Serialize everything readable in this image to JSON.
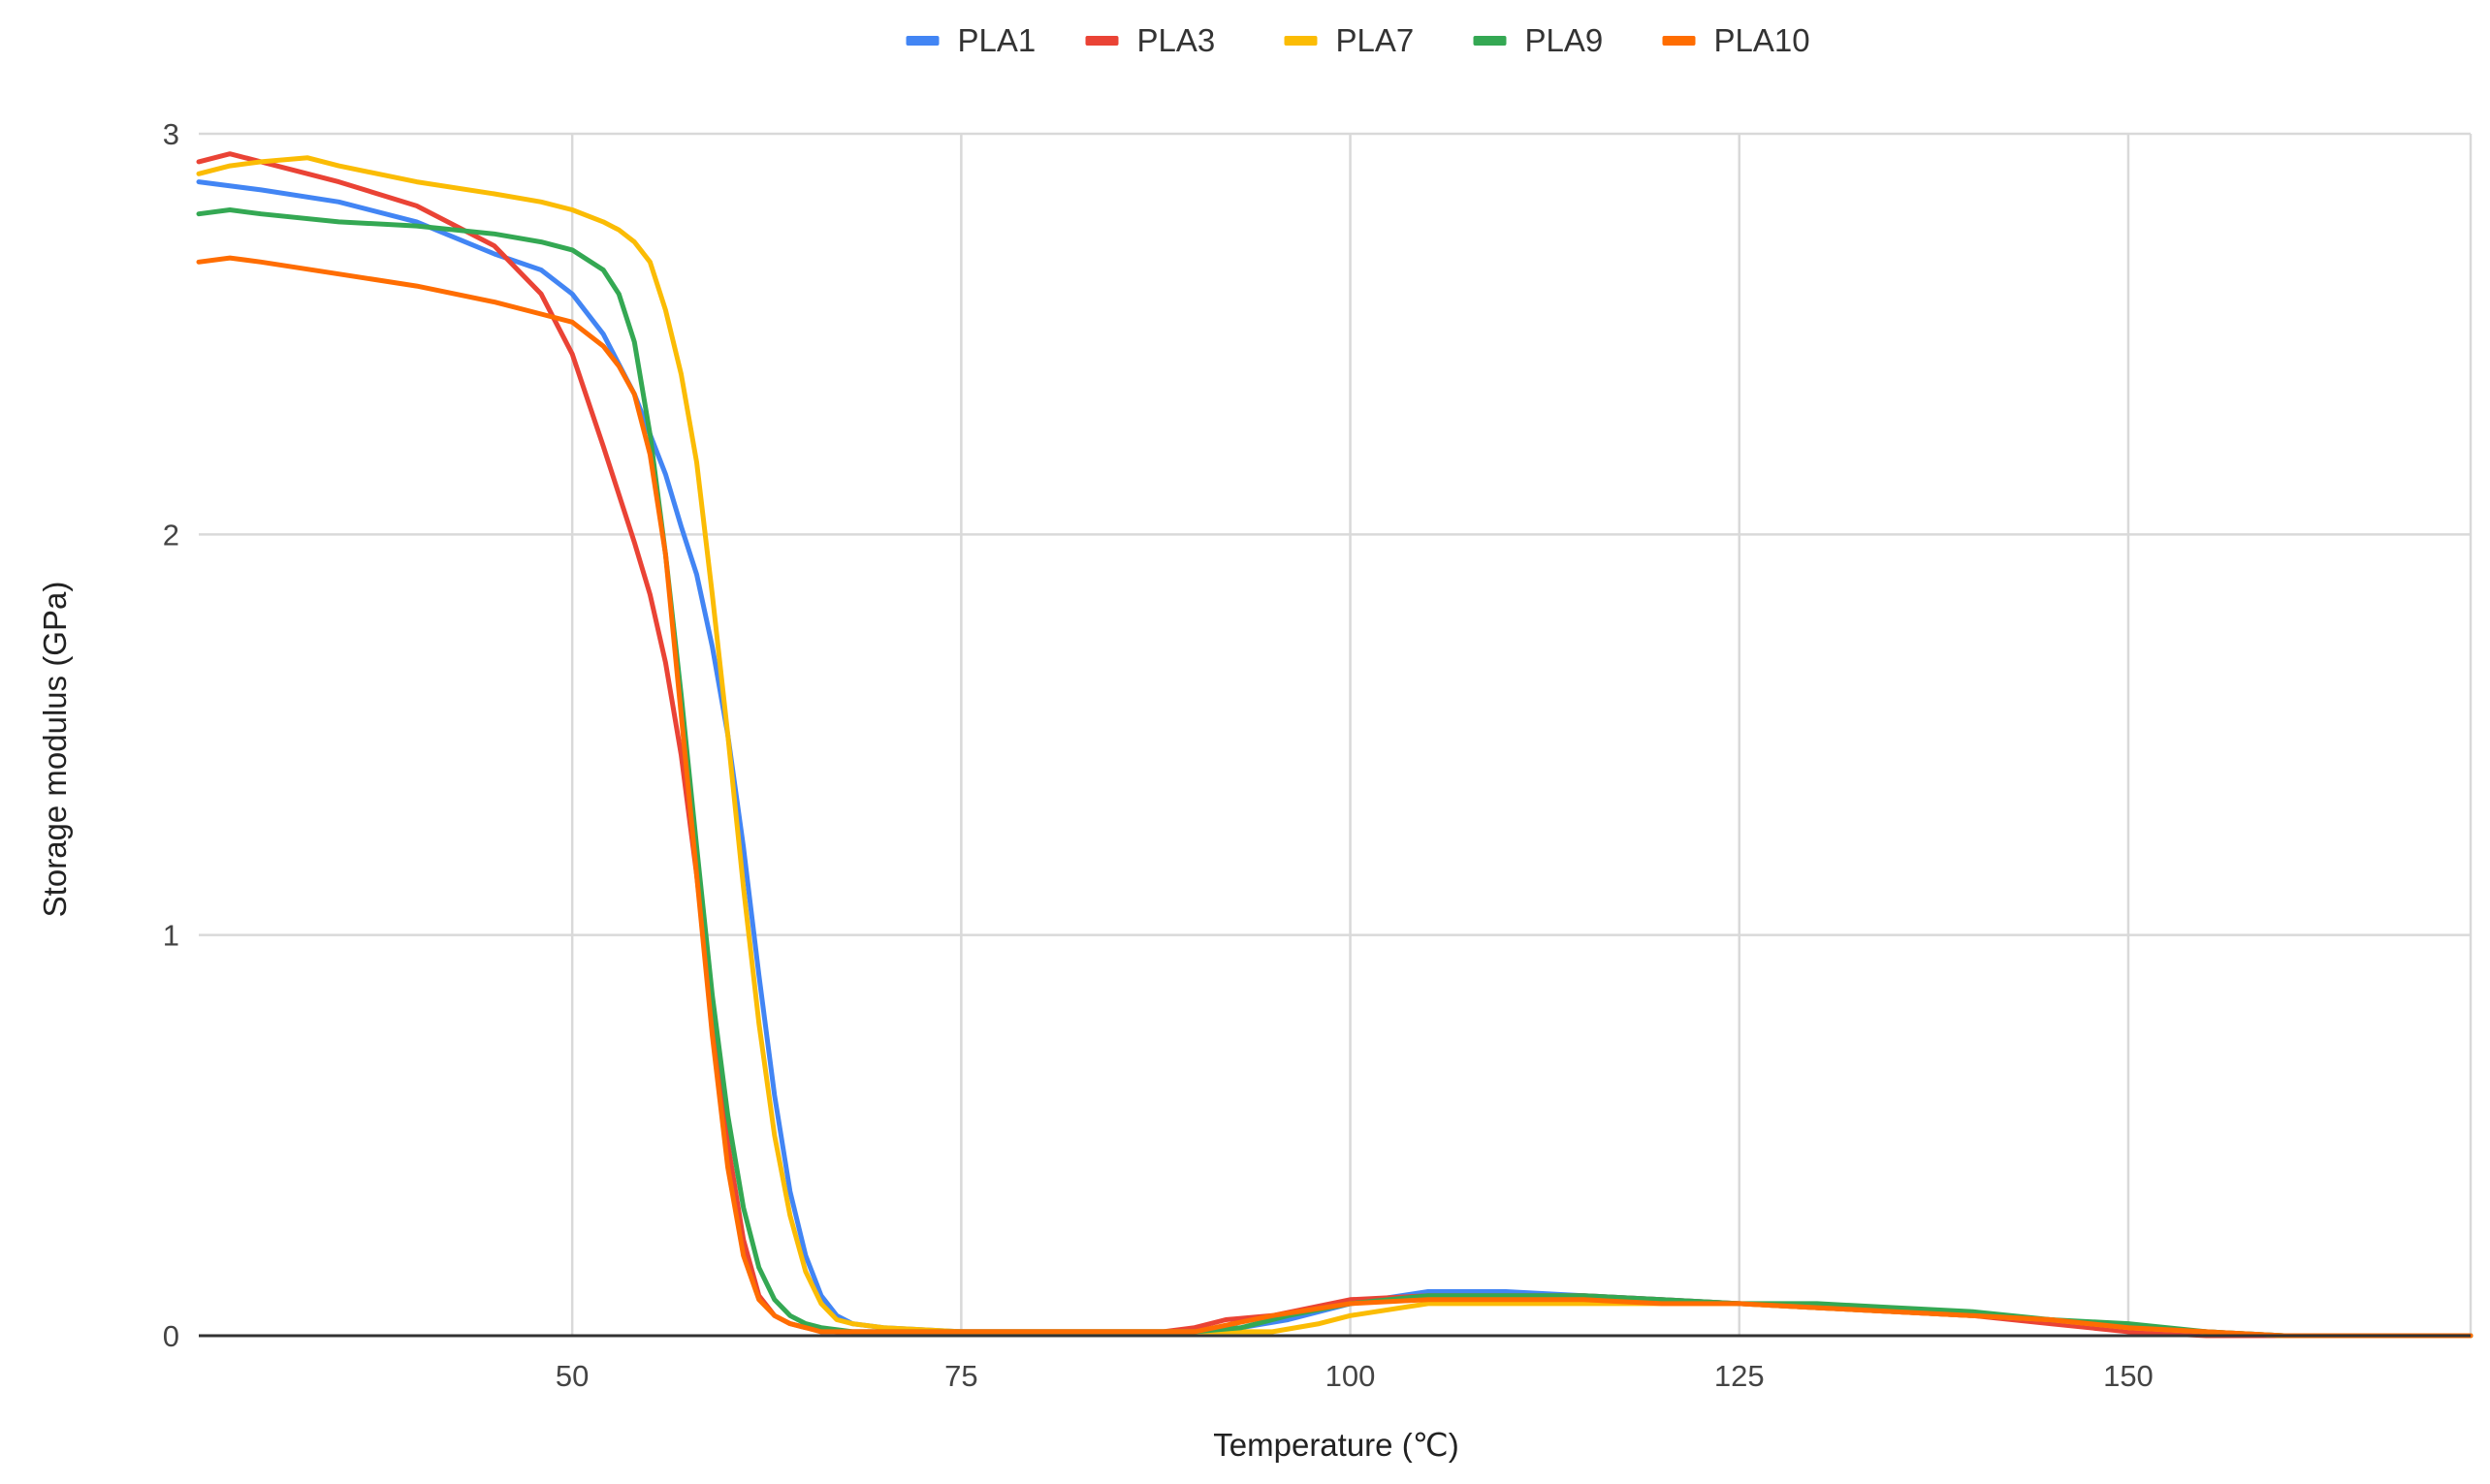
{
  "chart_data": {
    "type": "line",
    "title": "",
    "xlabel": "Temperature (℃)",
    "ylabel": "Storage modulus (GPa)",
    "xlim": [
      26,
      172
    ],
    "ylim": [
      0,
      3
    ],
    "xticks": [
      50,
      75,
      100,
      125,
      150
    ],
    "yticks": [
      0,
      1,
      2,
      3
    ],
    "grid": true,
    "legend_position": "top",
    "series": [
      {
        "name": "PLA1",
        "color": "#4285F4",
        "x": [
          26,
          30,
          35,
          40,
          45,
          48,
          50,
          52,
          54,
          56,
          57,
          58,
          59,
          60,
          61,
          62,
          63,
          64,
          65,
          66,
          67,
          68,
          70,
          75,
          80,
          85,
          90,
          93,
          96,
          100,
          105,
          110,
          115,
          120,
          125,
          130,
          135,
          140,
          145,
          150,
          155,
          160,
          165,
          172
        ],
        "y": [
          2.88,
          2.86,
          2.83,
          2.78,
          2.7,
          2.66,
          2.6,
          2.5,
          2.35,
          2.15,
          2.02,
          1.9,
          1.72,
          1.5,
          1.22,
          0.9,
          0.6,
          0.36,
          0.2,
          0.1,
          0.05,
          0.03,
          0.02,
          0.01,
          0.01,
          0.01,
          0.01,
          0.02,
          0.04,
          0.08,
          0.11,
          0.11,
          0.1,
          0.09,
          0.08,
          0.07,
          0.06,
          0.05,
          0.04,
          0.02,
          0.01,
          0.0,
          0.0,
          0.0
        ]
      },
      {
        "name": "PLA3",
        "color": "#EA4335",
        "x": [
          26,
          28,
          30,
          35,
          40,
          45,
          48,
          50,
          52,
          54,
          55,
          56,
          57,
          58,
          59,
          60,
          61,
          62,
          63,
          64,
          65,
          67,
          70,
          75,
          80,
          85,
          88,
          90,
          92,
          95,
          100,
          105,
          110,
          115,
          120,
          125,
          130,
          135,
          140,
          145,
          150,
          155,
          160,
          165,
          172
        ],
        "y": [
          2.93,
          2.95,
          2.93,
          2.88,
          2.82,
          2.72,
          2.6,
          2.45,
          2.22,
          1.98,
          1.85,
          1.68,
          1.45,
          1.15,
          0.8,
          0.48,
          0.24,
          0.1,
          0.05,
          0.03,
          0.02,
          0.01,
          0.01,
          0.01,
          0.01,
          0.01,
          0.01,
          0.02,
          0.04,
          0.05,
          0.09,
          0.1,
          0.1,
          0.1,
          0.09,
          0.08,
          0.07,
          0.06,
          0.05,
          0.03,
          0.01,
          0.0,
          0.0,
          0.0,
          0.0
        ]
      },
      {
        "name": "PLA7",
        "color": "#FBBC04",
        "x": [
          26,
          28,
          30,
          33,
          35,
          40,
          45,
          48,
          50,
          52,
          53,
          54,
          55,
          56,
          57,
          58,
          59,
          60,
          61,
          62,
          63,
          64,
          65,
          66,
          67,
          68,
          70,
          75,
          80,
          85,
          90,
          95,
          98,
          100,
          105,
          110,
          115,
          120,
          125,
          130,
          135,
          140,
          145,
          150,
          155,
          160,
          165,
          172
        ],
        "y": [
          2.9,
          2.92,
          2.93,
          2.94,
          2.92,
          2.88,
          2.85,
          2.83,
          2.81,
          2.78,
          2.76,
          2.73,
          2.68,
          2.56,
          2.4,
          2.18,
          1.85,
          1.5,
          1.12,
          0.78,
          0.5,
          0.3,
          0.16,
          0.08,
          0.04,
          0.03,
          0.02,
          0.01,
          0.01,
          0.01,
          0.01,
          0.01,
          0.03,
          0.05,
          0.08,
          0.08,
          0.08,
          0.08,
          0.08,
          0.07,
          0.06,
          0.05,
          0.04,
          0.02,
          0.01,
          0.0,
          0.0,
          0.0
        ]
      },
      {
        "name": "PLA9",
        "color": "#34A853",
        "x": [
          26,
          28,
          30,
          35,
          40,
          45,
          48,
          50,
          52,
          53,
          54,
          55,
          56,
          57,
          58,
          59,
          60,
          61,
          62,
          63,
          64,
          65,
          66,
          68,
          70,
          75,
          80,
          85,
          90,
          93,
          96,
          100,
          105,
          110,
          115,
          120,
          125,
          130,
          135,
          140,
          145,
          150,
          155,
          160,
          165,
          172
        ],
        "y": [
          2.8,
          2.81,
          2.8,
          2.78,
          2.77,
          2.75,
          2.73,
          2.71,
          2.66,
          2.6,
          2.48,
          2.25,
          1.95,
          1.6,
          1.22,
          0.85,
          0.55,
          0.32,
          0.17,
          0.09,
          0.05,
          0.03,
          0.02,
          0.01,
          0.01,
          0.01,
          0.01,
          0.01,
          0.01,
          0.02,
          0.05,
          0.08,
          0.1,
          0.1,
          0.1,
          0.09,
          0.08,
          0.08,
          0.07,
          0.06,
          0.04,
          0.03,
          0.01,
          0.0,
          0.0,
          0.0
        ]
      },
      {
        "name": "PLA10",
        "color": "#FF6D01",
        "x": [
          26,
          28,
          30,
          35,
          40,
          45,
          48,
          50,
          52,
          53,
          54,
          55,
          56,
          57,
          58,
          59,
          60,
          61,
          62,
          63,
          64,
          65,
          66,
          68,
          70,
          75,
          80,
          85,
          90,
          95,
          100,
          105,
          110,
          115,
          120,
          125,
          130,
          135,
          140,
          145,
          150,
          155,
          160,
          165,
          172
        ],
        "y": [
          2.68,
          2.69,
          2.68,
          2.65,
          2.62,
          2.58,
          2.55,
          2.53,
          2.47,
          2.42,
          2.35,
          2.2,
          1.95,
          1.55,
          1.15,
          0.75,
          0.42,
          0.2,
          0.09,
          0.05,
          0.03,
          0.02,
          0.01,
          0.01,
          0.01,
          0.01,
          0.01,
          0.01,
          0.01,
          0.05,
          0.08,
          0.09,
          0.09,
          0.09,
          0.08,
          0.08,
          0.07,
          0.06,
          0.05,
          0.04,
          0.02,
          0.01,
          0.0,
          0.0,
          0.0
        ]
      }
    ]
  }
}
